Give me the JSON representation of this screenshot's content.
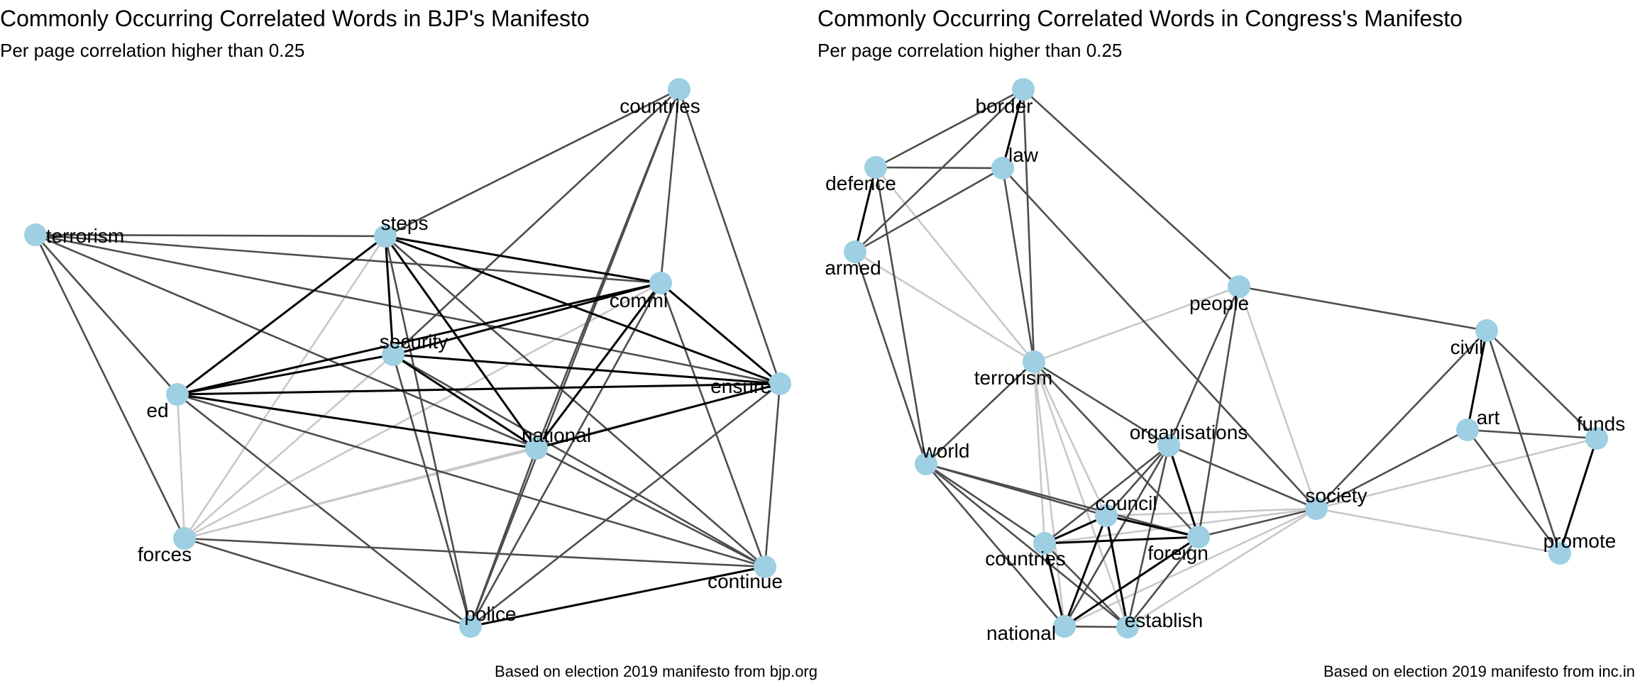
{
  "panels": [
    {
      "title": "Commonly Occurring Correlated Words in BJP's Manifesto",
      "subtitle": "Per page correlation higher than 0.25",
      "caption": "Based on election 2019 manifesto from bjp.org",
      "node_color": "#9ecfe2",
      "nodes": [
        "countries",
        "terrorism",
        "steps",
        "commi",
        "security",
        "ed",
        "ensure",
        "national",
        "forces",
        "continue",
        "police"
      ],
      "edges": [
        {
          "a": "countries",
          "b": "steps",
          "w": "mid"
        },
        {
          "a": "countries",
          "b": "security",
          "w": "mid"
        },
        {
          "a": "countries",
          "b": "commi",
          "w": "mid"
        },
        {
          "a": "countries",
          "b": "ensure",
          "w": "mid"
        },
        {
          "a": "countries",
          "b": "national",
          "w": "mid"
        },
        {
          "a": "countries",
          "b": "police",
          "w": "mid"
        },
        {
          "a": "terrorism",
          "b": "steps",
          "w": "mid"
        },
        {
          "a": "terrorism",
          "b": "commi",
          "w": "mid"
        },
        {
          "a": "terrorism",
          "b": "ensure",
          "w": "mid"
        },
        {
          "a": "terrorism",
          "b": "national",
          "w": "mid"
        },
        {
          "a": "terrorism",
          "b": "ed",
          "w": "mid"
        },
        {
          "a": "terrorism",
          "b": "forces",
          "w": "mid"
        },
        {
          "a": "steps",
          "b": "commi",
          "w": "strong"
        },
        {
          "a": "steps",
          "b": "ensure",
          "w": "strong"
        },
        {
          "a": "steps",
          "b": "security",
          "w": "strong"
        },
        {
          "a": "steps",
          "b": "national",
          "w": "strong"
        },
        {
          "a": "steps",
          "b": "ed",
          "w": "strong"
        },
        {
          "a": "steps",
          "b": "police",
          "w": "mid"
        },
        {
          "a": "steps",
          "b": "continue",
          "w": "mid"
        },
        {
          "a": "steps",
          "b": "forces",
          "w": "weak"
        },
        {
          "a": "commi",
          "b": "security",
          "w": "strong"
        },
        {
          "a": "commi",
          "b": "ed",
          "w": "strong"
        },
        {
          "a": "commi",
          "b": "ensure",
          "w": "strong"
        },
        {
          "a": "commi",
          "b": "national",
          "w": "strong"
        },
        {
          "a": "commi",
          "b": "continue",
          "w": "mid"
        },
        {
          "a": "commi",
          "b": "police",
          "w": "mid"
        },
        {
          "a": "commi",
          "b": "forces",
          "w": "weak"
        },
        {
          "a": "security",
          "b": "ed",
          "w": "strong"
        },
        {
          "a": "security",
          "b": "ensure",
          "w": "strong"
        },
        {
          "a": "security",
          "b": "national",
          "w": "strong"
        },
        {
          "a": "security",
          "b": "continue",
          "w": "mid"
        },
        {
          "a": "security",
          "b": "police",
          "w": "mid"
        },
        {
          "a": "security",
          "b": "forces",
          "w": "weak"
        },
        {
          "a": "ed",
          "b": "ensure",
          "w": "strong"
        },
        {
          "a": "ed",
          "b": "national",
          "w": "strong"
        },
        {
          "a": "ed",
          "b": "continue",
          "w": "mid"
        },
        {
          "a": "ed",
          "b": "police",
          "w": "mid"
        },
        {
          "a": "ed",
          "b": "forces",
          "w": "weak"
        },
        {
          "a": "ensure",
          "b": "national",
          "w": "strong"
        },
        {
          "a": "ensure",
          "b": "continue",
          "w": "mid"
        },
        {
          "a": "ensure",
          "b": "police",
          "w": "mid"
        },
        {
          "a": "ensure",
          "b": "forces",
          "w": "weak"
        },
        {
          "a": "national",
          "b": "police",
          "w": "mid"
        },
        {
          "a": "national",
          "b": "continue",
          "w": "mid"
        },
        {
          "a": "national",
          "b": "forces",
          "w": "weak"
        },
        {
          "a": "forces",
          "b": "police",
          "w": "mid"
        },
        {
          "a": "forces",
          "b": "continue",
          "w": "mid"
        },
        {
          "a": "police",
          "b": "continue",
          "w": "strong"
        }
      ]
    },
    {
      "title": "Commonly Occurring Correlated Words in Congress's Manifesto",
      "subtitle": "Per page correlation higher than 0.25",
      "caption": "Based on election 2019 manifesto from inc.in",
      "node_color": "#9ecfe2",
      "nodes": [
        "border",
        "law",
        "defence",
        "armed",
        "people",
        "terrorism",
        "civil",
        "art",
        "funds",
        "organisations",
        "world",
        "society",
        "council",
        "countries",
        "foreign",
        "promote",
        "national",
        "establish"
      ],
      "edges": [
        {
          "a": "border",
          "b": "law",
          "w": "strong"
        },
        {
          "a": "border",
          "b": "defence",
          "w": "mid"
        },
        {
          "a": "border",
          "b": "armed",
          "w": "mid"
        },
        {
          "a": "border",
          "b": "terrorism",
          "w": "mid"
        },
        {
          "a": "border",
          "b": "people",
          "w": "mid"
        },
        {
          "a": "law",
          "b": "defence",
          "w": "mid"
        },
        {
          "a": "law",
          "b": "armed",
          "w": "mid"
        },
        {
          "a": "law",
          "b": "terrorism",
          "w": "mid"
        },
        {
          "a": "law",
          "b": "society",
          "w": "mid"
        },
        {
          "a": "defence",
          "b": "armed",
          "w": "strong"
        },
        {
          "a": "defence",
          "b": "world",
          "w": "mid"
        },
        {
          "a": "defence",
          "b": "terrorism",
          "w": "weak"
        },
        {
          "a": "armed",
          "b": "world",
          "w": "mid"
        },
        {
          "a": "armed",
          "b": "terrorism",
          "w": "weak"
        },
        {
          "a": "people",
          "b": "terrorism",
          "w": "weak"
        },
        {
          "a": "people",
          "b": "civil",
          "w": "mid"
        },
        {
          "a": "people",
          "b": "organisations",
          "w": "mid"
        },
        {
          "a": "people",
          "b": "foreign",
          "w": "mid"
        },
        {
          "a": "people",
          "b": "society",
          "w": "weak"
        },
        {
          "a": "terrorism",
          "b": "world",
          "w": "mid"
        },
        {
          "a": "terrorism",
          "b": "organisations",
          "w": "mid"
        },
        {
          "a": "terrorism",
          "b": "foreign",
          "w": "mid"
        },
        {
          "a": "terrorism",
          "b": "council",
          "w": "weak"
        },
        {
          "a": "terrorism",
          "b": "countries",
          "w": "weak"
        },
        {
          "a": "terrorism",
          "b": "national",
          "w": "weak"
        },
        {
          "a": "terrorism",
          "b": "establish",
          "w": "weak"
        },
        {
          "a": "civil",
          "b": "art",
          "w": "strong"
        },
        {
          "a": "civil",
          "b": "funds",
          "w": "mid"
        },
        {
          "a": "civil",
          "b": "promote",
          "w": "mid"
        },
        {
          "a": "civil",
          "b": "society",
          "w": "mid"
        },
        {
          "a": "art",
          "b": "funds",
          "w": "mid"
        },
        {
          "a": "art",
          "b": "promote",
          "w": "mid"
        },
        {
          "a": "art",
          "b": "society",
          "w": "mid"
        },
        {
          "a": "funds",
          "b": "promote",
          "w": "strong"
        },
        {
          "a": "funds",
          "b": "society",
          "w": "weak"
        },
        {
          "a": "organisations",
          "b": "council",
          "w": "mid"
        },
        {
          "a": "organisations",
          "b": "countries",
          "w": "mid"
        },
        {
          "a": "organisations",
          "b": "foreign",
          "w": "strong"
        },
        {
          "a": "organisations",
          "b": "society",
          "w": "mid"
        },
        {
          "a": "organisations",
          "b": "national",
          "w": "mid"
        },
        {
          "a": "organisations",
          "b": "establish",
          "w": "mid"
        },
        {
          "a": "world",
          "b": "council",
          "w": "mid"
        },
        {
          "a": "world",
          "b": "countries",
          "w": "mid"
        },
        {
          "a": "world",
          "b": "foreign",
          "w": "mid"
        },
        {
          "a": "world",
          "b": "national",
          "w": "mid"
        },
        {
          "a": "world",
          "b": "establish",
          "w": "mid"
        },
        {
          "a": "society",
          "b": "foreign",
          "w": "mid"
        },
        {
          "a": "society",
          "b": "council",
          "w": "weak"
        },
        {
          "a": "society",
          "b": "countries",
          "w": "weak"
        },
        {
          "a": "society",
          "b": "establish",
          "w": "weak"
        },
        {
          "a": "society",
          "b": "national",
          "w": "weak"
        },
        {
          "a": "society",
          "b": "promote",
          "w": "weak"
        },
        {
          "a": "council",
          "b": "countries",
          "w": "strong"
        },
        {
          "a": "council",
          "b": "foreign",
          "w": "strong"
        },
        {
          "a": "council",
          "b": "national",
          "w": "strong"
        },
        {
          "a": "council",
          "b": "establish",
          "w": "strong"
        },
        {
          "a": "countries",
          "b": "foreign",
          "w": "strong"
        },
        {
          "a": "countries",
          "b": "national",
          "w": "strong"
        },
        {
          "a": "countries",
          "b": "establish",
          "w": "mid"
        },
        {
          "a": "foreign",
          "b": "national",
          "w": "strong"
        },
        {
          "a": "foreign",
          "b": "establish",
          "w": "mid"
        },
        {
          "a": "national",
          "b": "establish",
          "w": "mid"
        }
      ]
    }
  ]
}
